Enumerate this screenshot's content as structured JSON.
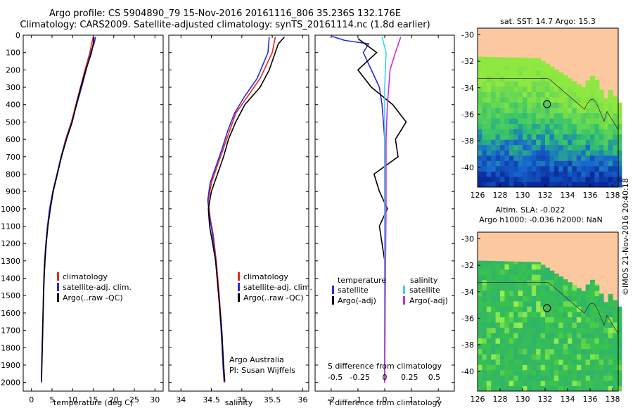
{
  "header": {
    "line1": "Argo profile: CS 5904890_79 15-Nov-2016 20161116_806 35.236S 132.176E",
    "line2": "Climatology: CARS2009. Satellite-adjusted climatology: synTS_20161114.nc (1.8d earlier)"
  },
  "chart_data": [
    {
      "type": "line",
      "xlabel": "temperature (deg C)",
      "xlim": [
        -2,
        32
      ],
      "xticks": [
        0,
        5,
        10,
        15,
        20,
        25,
        30
      ],
      "ylim": [
        0,
        2050
      ],
      "yticks": [
        0,
        100,
        200,
        300,
        400,
        500,
        600,
        700,
        800,
        900,
        1000,
        1100,
        1200,
        1300,
        1400,
        1500,
        1600,
        1700,
        1800,
        1900,
        2000
      ],
      "y_reversed": true,
      "legend": {
        "placement": "lower-middle",
        "entries": [
          "climatology",
          "satellite-adj. clim.",
          "Argo(..raw -QC)"
        ]
      },
      "series": [
        {
          "name": "climatology",
          "color": "#e8281e",
          "points": [
            [
              15.0,
              10
            ],
            [
              14.6,
              50
            ],
            [
              14.2,
              100
            ],
            [
              13.0,
              200
            ],
            [
              11.9,
              300
            ],
            [
              10.8,
              400
            ],
            [
              9.7,
              500
            ],
            [
              8.3,
              600
            ],
            [
              7.2,
              700
            ],
            [
              6.2,
              800
            ],
            [
              5.2,
              900
            ],
            [
              4.5,
              1000
            ],
            [
              3.9,
              1100
            ],
            [
              3.5,
              1200
            ],
            [
              3.2,
              1300
            ],
            [
              3.0,
              1400
            ],
            [
              2.9,
              1500
            ],
            [
              2.8,
              1600
            ],
            [
              2.7,
              1700
            ],
            [
              2.6,
              1800
            ],
            [
              2.5,
              1900
            ],
            [
              2.4,
              2000
            ]
          ]
        },
        {
          "name": "satellite-adj. clim.",
          "color": "#2b2bd9",
          "points": [
            [
              15.6,
              10
            ],
            [
              15.2,
              50
            ],
            [
              14.4,
              100
            ],
            [
              13.3,
              200
            ],
            [
              12.2,
              300
            ],
            [
              11.0,
              400
            ],
            [
              9.8,
              500
            ],
            [
              8.4,
              600
            ],
            [
              7.2,
              700
            ],
            [
              6.2,
              800
            ],
            [
              5.2,
              900
            ],
            [
              4.4,
              1000
            ],
            [
              3.9,
              1100
            ],
            [
              3.5,
              1200
            ],
            [
              3.2,
              1300
            ],
            [
              3.0,
              1400
            ],
            [
              2.9,
              1500
            ],
            [
              2.8,
              1600
            ],
            [
              2.7,
              1700
            ],
            [
              2.6,
              1800
            ],
            [
              2.5,
              1900
            ],
            [
              2.4,
              2000
            ]
          ]
        },
        {
          "name": "Argo(..raw -QC)",
          "color": "#000000",
          "points": [
            [
              15.2,
              10
            ],
            [
              15.0,
              50
            ],
            [
              14.6,
              100
            ],
            [
              13.2,
              200
            ],
            [
              12.0,
              300
            ],
            [
              10.9,
              400
            ],
            [
              9.9,
              500
            ],
            [
              8.5,
              600
            ],
            [
              7.3,
              700
            ],
            [
              6.3,
              800
            ],
            [
              5.3,
              900
            ],
            [
              4.6,
              1000
            ],
            [
              4.0,
              1100
            ],
            [
              3.6,
              1200
            ],
            [
              3.3,
              1300
            ],
            [
              3.1,
              1400
            ],
            [
              2.95,
              1500
            ],
            [
              2.85,
              1600
            ],
            [
              2.75,
              1700
            ],
            [
              2.65,
              1800
            ],
            [
              2.55,
              1900
            ],
            [
              2.45,
              1990
            ]
          ]
        }
      ]
    },
    {
      "type": "line",
      "xlabel": "salinity",
      "xlim": [
        33.8,
        36.1
      ],
      "xticks": [
        34,
        34.5,
        35,
        35.5,
        36
      ],
      "ylim": [
        0,
        2050
      ],
      "y_reversed": true,
      "legend": {
        "placement": "lower-middle",
        "entries": [
          "climatology",
          "satellite-adj. clim.",
          "Argo(..raw -QC)"
        ]
      },
      "annotations": [
        "Argo Australia",
        "PI: Susan Wijffels"
      ],
      "series": [
        {
          "name": "climatology",
          "color": "#e8281e",
          "points": [
            [
              35.55,
              10
            ],
            [
              35.5,
              100
            ],
            [
              35.3,
              250
            ],
            [
              35.1,
              350
            ],
            [
              34.9,
              450
            ],
            [
              34.8,
              550
            ],
            [
              34.7,
              650
            ],
            [
              34.6,
              750
            ],
            [
              34.5,
              850
            ],
            [
              34.45,
              950
            ],
            [
              34.48,
              1050
            ],
            [
              34.53,
              1150
            ],
            [
              34.58,
              1300
            ],
            [
              34.63,
              1500
            ],
            [
              34.67,
              1700
            ],
            [
              34.7,
              1900
            ],
            [
              34.72,
              2000
            ]
          ]
        },
        {
          "name": "satellite-adj. clim.",
          "color": "#2b2bd9",
          "points": [
            [
              35.45,
              10
            ],
            [
              35.43,
              100
            ],
            [
              35.25,
              250
            ],
            [
              35.05,
              350
            ],
            [
              34.88,
              450
            ],
            [
              34.77,
              550
            ],
            [
              34.68,
              650
            ],
            [
              34.58,
              750
            ],
            [
              34.48,
              850
            ],
            [
              34.44,
              950
            ],
            [
              34.47,
              1050
            ],
            [
              34.52,
              1150
            ],
            [
              34.57,
              1300
            ],
            [
              34.62,
              1500
            ],
            [
              34.66,
              1700
            ],
            [
              34.69,
              1900
            ],
            [
              34.71,
              2000
            ]
          ]
        },
        {
          "name": "Argo(..raw -QC)",
          "color": "#000000",
          "points": [
            [
              35.7,
              10
            ],
            [
              35.6,
              50
            ],
            [
              35.55,
              100
            ],
            [
              35.45,
              200
            ],
            [
              35.3,
              300
            ],
            [
              35.05,
              400
            ],
            [
              34.9,
              500
            ],
            [
              34.78,
              600
            ],
            [
              34.7,
              700
            ],
            [
              34.6,
              800
            ],
            [
              34.5,
              900
            ],
            [
              34.45,
              1000
            ],
            [
              34.47,
              1100
            ],
            [
              34.52,
              1200
            ],
            [
              34.57,
              1300
            ],
            [
              34.62,
              1500
            ],
            [
              34.67,
              1700
            ],
            [
              34.7,
              1900
            ],
            [
              34.72,
              1990
            ]
          ]
        }
      ]
    },
    {
      "type": "line",
      "xlabel": "T difference from climatology",
      "xlabel_top": "S difference from climatology",
      "xlim": [
        -2.6,
        2.6
      ],
      "xticks": [
        -2,
        -1,
        0,
        1,
        2
      ],
      "xticks_salinity": [
        -0.5,
        -0.25,
        0,
        0.25,
        0.5
      ],
      "xticks_salinity_labels": [
        "-0.5",
        "-0.25",
        "0",
        "0.25",
        "0.5"
      ],
      "ylim": [
        0,
        2050
      ],
      "y_reversed": true,
      "legend": {
        "placement": "lower-middle",
        "temperature_title": "temperature",
        "salinity_title": "salinity",
        "temperature_entries": [
          "satellite",
          "Argo(-adj)"
        ],
        "salinity_entries": [
          "satellite",
          "Argo(-adj)"
        ]
      },
      "series": [
        {
          "name": "temperature satellite",
          "color": "#2b2bd9",
          "points": [
            [
              -2.0,
              5
            ],
            [
              -1.5,
              30
            ],
            [
              -0.6,
              50
            ],
            [
              -0.8,
              100
            ],
            [
              -0.5,
              200
            ],
            [
              -0.2,
              300
            ],
            [
              -0.1,
              400
            ],
            [
              0.0,
              600
            ],
            [
              0.0,
              1000
            ],
            [
              0.0,
              2000
            ]
          ]
        },
        {
          "name": "temperature Argo(-adj)",
          "color": "#000000",
          "points": [
            [
              -1.0,
              20
            ],
            [
              -0.3,
              100
            ],
            [
              -1.0,
              200
            ],
            [
              -0.5,
              300
            ],
            [
              0.3,
              400
            ],
            [
              0.8,
              500
            ],
            [
              0.4,
              600
            ],
            [
              0.5,
              700
            ],
            [
              -0.4,
              800
            ],
            [
              -0.2,
              900
            ],
            [
              0.1,
              1000
            ],
            [
              -0.2,
              1100
            ],
            [
              0.0,
              1300
            ],
            [
              0.0,
              1600
            ],
            [
              0.0,
              2000
            ]
          ]
        },
        {
          "name": "salinity satellite",
          "color": "#36d7e8",
          "points": [
            [
              -0.1,
              10
            ],
            [
              0.05,
              100
            ],
            [
              0.0,
              300
            ],
            [
              0.0,
              600
            ],
            [
              0.0,
              1000
            ],
            [
              0.0,
              2000
            ]
          ]
        },
        {
          "name": "salinity Argo(-adj)",
          "color": "#d52ad9",
          "points": [
            [
              0.6,
              10
            ],
            [
              0.4,
              100
            ],
            [
              0.2,
              200
            ],
            [
              0.1,
              400
            ],
            [
              0.05,
              600
            ],
            [
              0.05,
              1000
            ],
            [
              0.02,
              1500
            ],
            [
              0.0,
              2000
            ]
          ]
        }
      ]
    },
    {
      "type": "heatmap",
      "title": "sat. SST: 14.7 Argo: 15.3",
      "xlim": [
        126,
        138.5
      ],
      "ylim": [
        -41.5,
        -29.5
      ],
      "xticks": [
        126,
        128,
        130,
        132,
        134,
        136,
        138
      ],
      "yticks": [
        -30,
        -32,
        -34,
        -36,
        -38,
        -40
      ],
      "marker": [
        132.176,
        -35.236
      ],
      "colors": {
        "land": "#fbc8a0",
        "warm": "#8fe840",
        "mid": "#2fbf70",
        "cool": "#1868d0",
        "cold": "#0a2a9a"
      }
    },
    {
      "type": "heatmap",
      "title": "Altim. SLA: -0.022",
      "subtitle": "Argo h1000: -0.036 h2000: NaN",
      "xlim": [
        126,
        138.5
      ],
      "ylim": [
        -41.5,
        -29.5
      ],
      "xticks": [
        126,
        128,
        130,
        132,
        134,
        136,
        138
      ],
      "yticks": [
        -30,
        -32,
        -34,
        -36,
        -38,
        -40
      ],
      "marker": [
        132.176,
        -35.236
      ],
      "colors": {
        "land": "#fbc8a0",
        "base": "#3dc648",
        "high": "#9af050",
        "low": "#2fb36a"
      }
    }
  ],
  "footer": {
    "stamp": "©IMOS 21-Nov-2016 20:40:18"
  }
}
